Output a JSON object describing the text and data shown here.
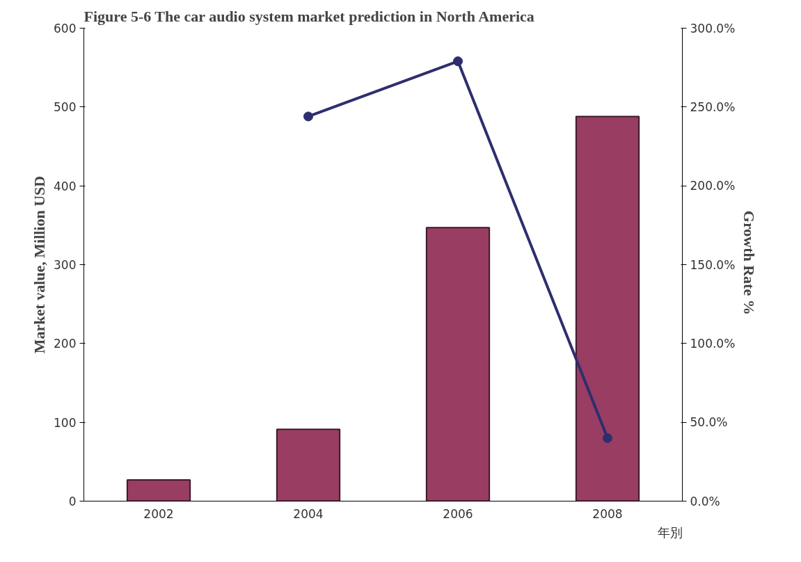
{
  "chart_data": {
    "type": "bar",
    "title": "Figure 5-6 The car audio system market prediction in North America",
    "xlabel": "年別",
    "ylabel": "Market value, Million USD",
    "y2label": "Growth  Rate %",
    "categories": [
      "2002",
      "2004",
      "2006",
      "2008"
    ],
    "series": [
      {
        "color": "#993d63",
        "values": [
          27,
          91,
          347,
          488
        ]
      },
      {
        "type": "line",
        "axis": "y2",
        "color": "#2e2e6e",
        "marker": "circle",
        "values": [
          null,
          244,
          279,
          40
        ]
      }
    ],
    "ylim": [
      0,
      600
    ],
    "yticks": [
      0,
      100,
      200,
      300,
      400,
      500,
      600
    ],
    "y2lim": [
      0,
      300
    ],
    "y2ticks": [
      {
        "value": 0,
        "label": "0.0%"
      },
      {
        "value": 50,
        "label": "50.0%"
      },
      {
        "value": 100,
        "label": "100.0%"
      },
      {
        "value": 150,
        "label": "150.0%"
      },
      {
        "value": 200,
        "label": "200.0%"
      },
      {
        "value": 250,
        "label": "250.0%"
      },
      {
        "value": 300,
        "label": "300.0%"
      }
    ],
    "grid": false
  }
}
